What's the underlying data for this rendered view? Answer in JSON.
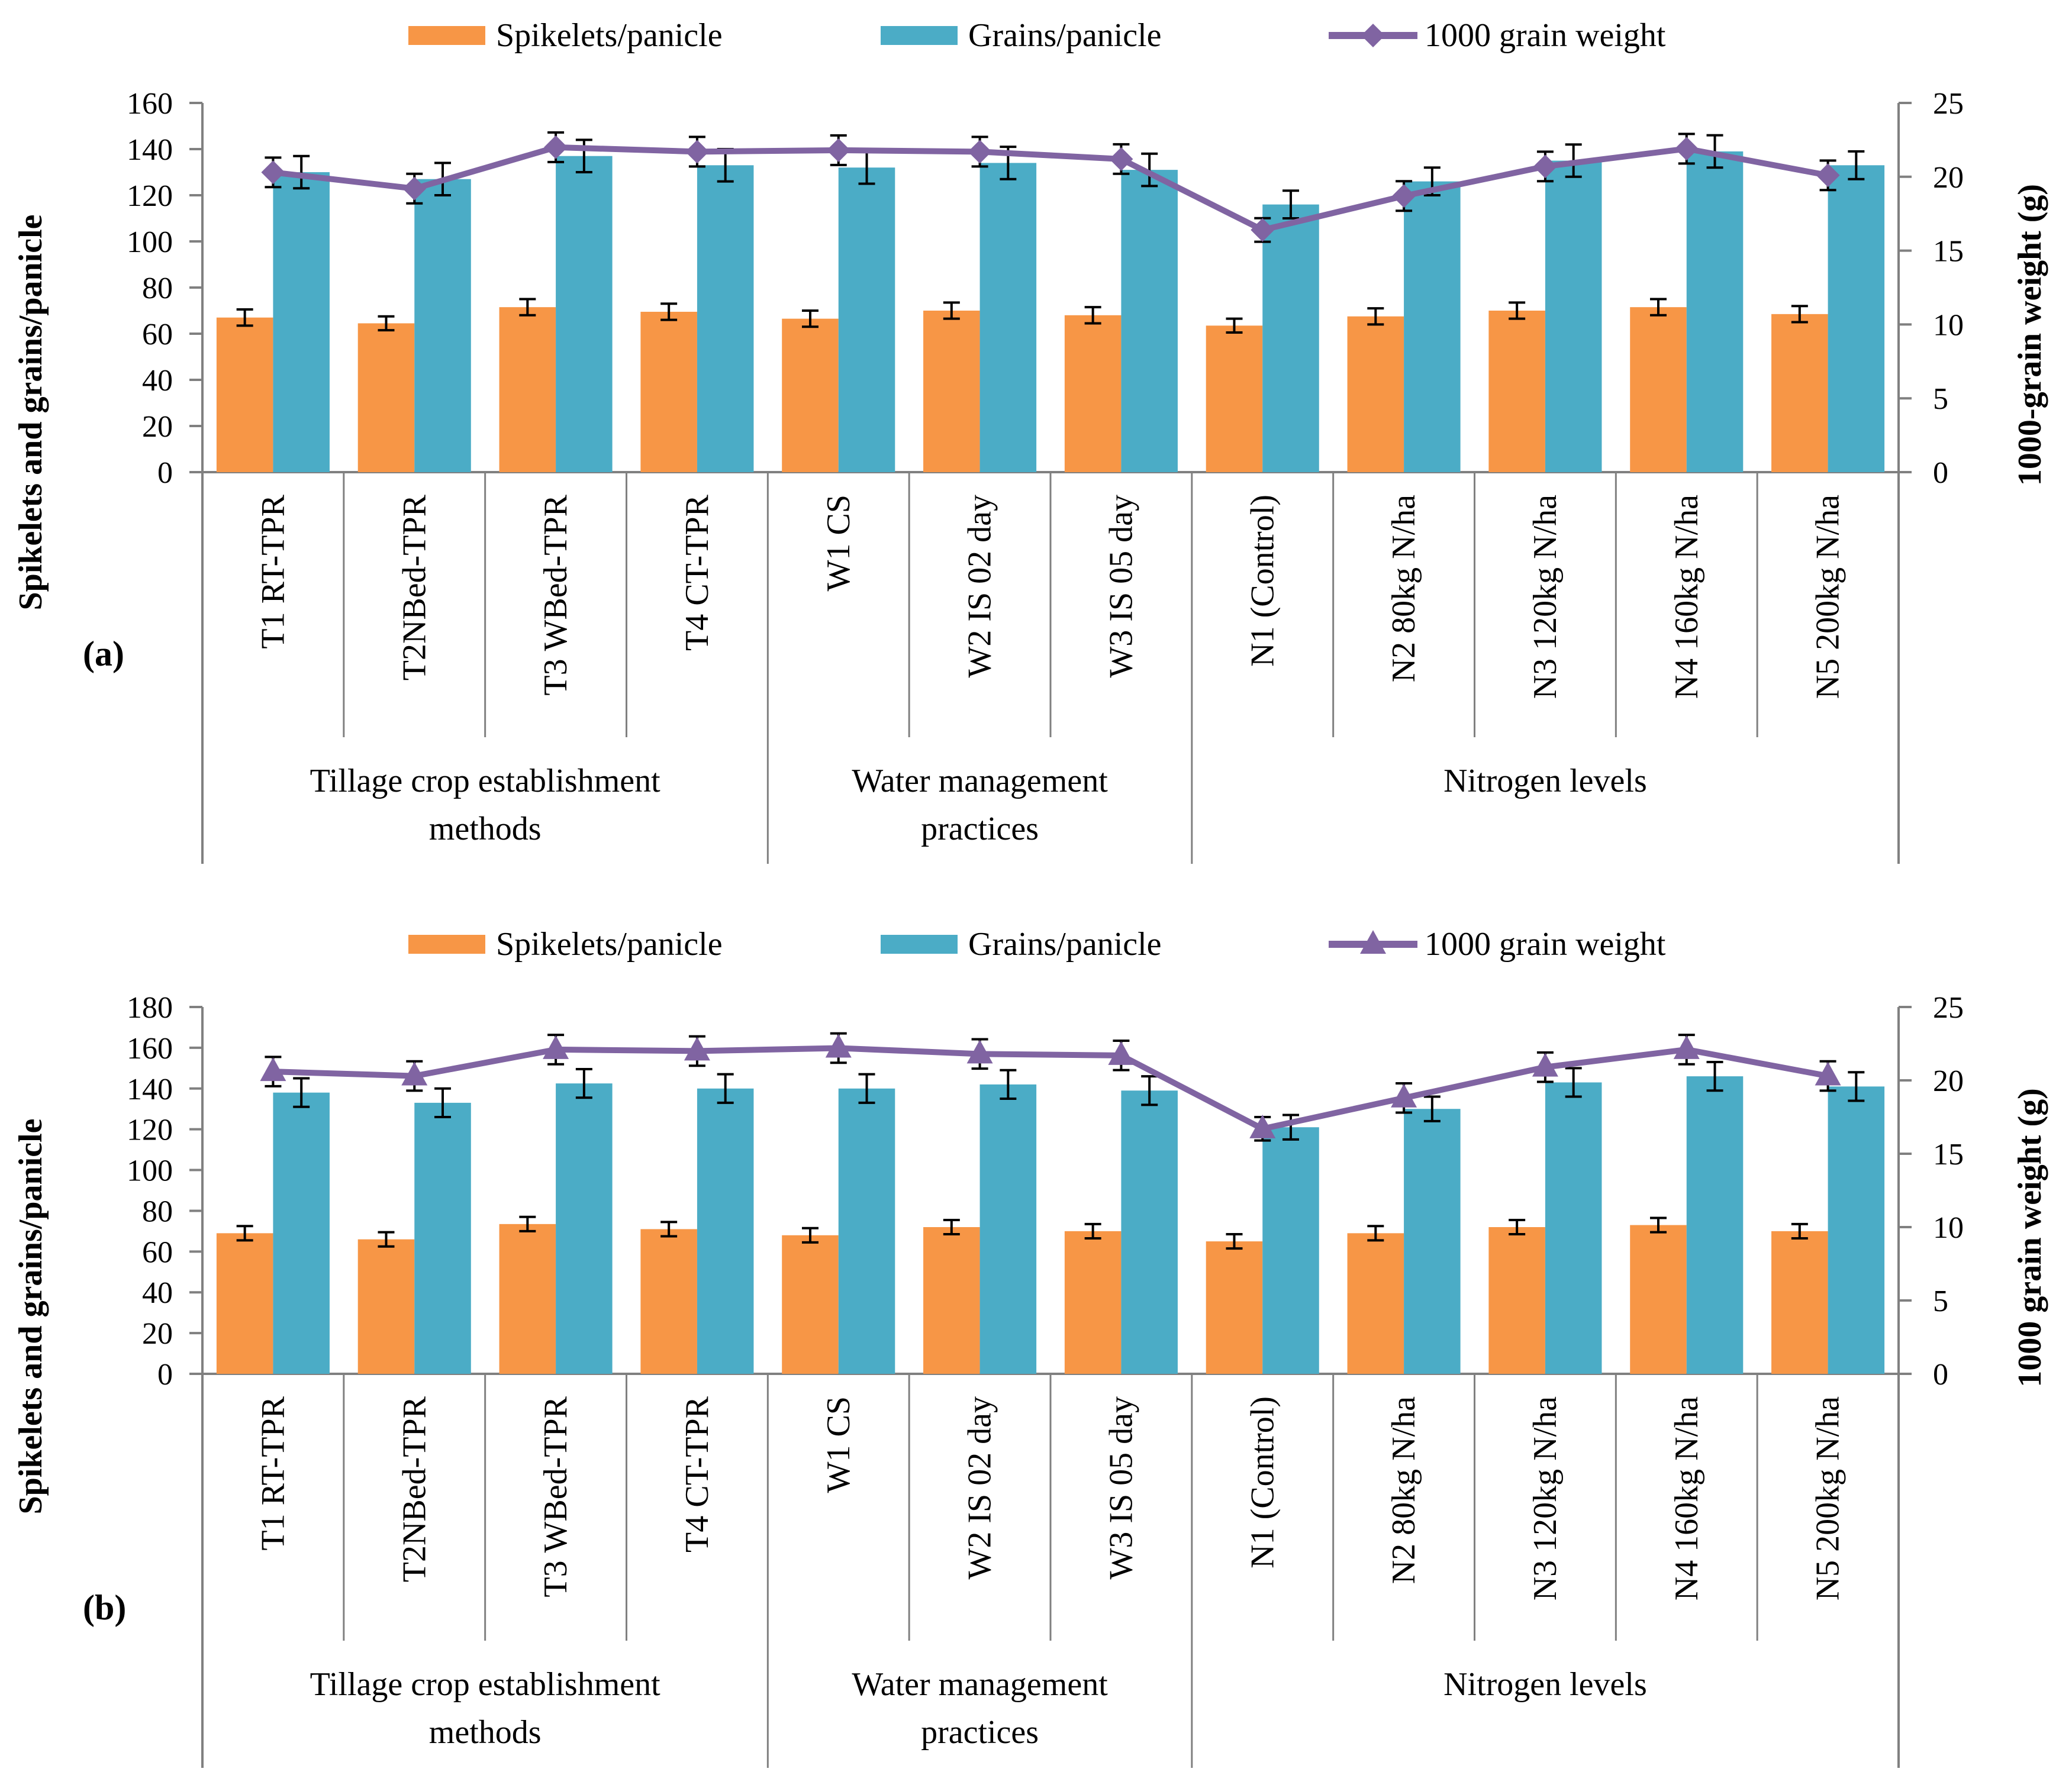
{
  "colors": {
    "spikelets": "#F79646",
    "grains": "#4BACC6",
    "weight": "#8064A2",
    "axis": "#808080",
    "error_bar": "#000000"
  },
  "chart_data": [
    {
      "type": "bar",
      "panel_label": "(a)",
      "ylabel": "Spikelets and grains/panicle",
      "y2label": "1000-grain weight (g)",
      "ylim": [
        0,
        160
      ],
      "yticks": [
        0,
        20,
        40,
        60,
        80,
        100,
        120,
        140,
        160
      ],
      "y2lim": [
        0,
        25
      ],
      "y2ticks": [
        0,
        5,
        10,
        15,
        20,
        25
      ],
      "legend": [
        "Spikelets/panicle",
        "Grains/panicle",
        "1000 grain weight"
      ],
      "weight_marker": "diamond",
      "categories": [
        "T1 RT-TPR",
        "T2NBed-TPR",
        "T3 WBed-TPR",
        "T4 CT-TPR",
        "W1 CS",
        "W2 IS 02 day",
        "W3 IS 05 day",
        "N1 (Control)",
        "N2 80kg N/ha",
        "N3 120kg N/ha",
        "N4 160kg N/ha",
        "N5 200kg N/ha"
      ],
      "groups": [
        {
          "label_lines": [
            "Tillage crop establishment",
            "methods"
          ],
          "count": 4
        },
        {
          "label_lines": [
            "Water management",
            "practices"
          ],
          "count": 3
        },
        {
          "label_lines": [
            "Nitrogen levels"
          ],
          "count": 5
        }
      ],
      "series": [
        {
          "name": "Spikelets/panicle",
          "axis": "left",
          "values": [
            67,
            64.5,
            71.5,
            69.5,
            66.5,
            70,
            68,
            63.5,
            67.5,
            70,
            71.5,
            68.5
          ],
          "errors": [
            3.5,
            3,
            3.5,
            3.5,
            3.5,
            3.5,
            3.5,
            3,
            3.5,
            3.5,
            3.5,
            3.5
          ]
        },
        {
          "name": "Grains/panicle",
          "axis": "left",
          "values": [
            130,
            127,
            137,
            133,
            132,
            134,
            131,
            116,
            126,
            135,
            139,
            133
          ],
          "errors": [
            7,
            7,
            7,
            7,
            7,
            7,
            7,
            6,
            6,
            7,
            7,
            6
          ]
        },
        {
          "name": "1000 grain weight",
          "axis": "right",
          "values": [
            20.3,
            19.2,
            22,
            21.7,
            21.8,
            21.7,
            21.2,
            16.4,
            18.7,
            20.7,
            21.9,
            20.1
          ],
          "errors": [
            1,
            1,
            1,
            1,
            1,
            1,
            1,
            0.8,
            1,
            1,
            1,
            1
          ]
        }
      ]
    },
    {
      "type": "bar",
      "panel_label": "(b)",
      "ylabel": "Spikelets and grains/panicle",
      "y2label": "1000 grain weight (g)",
      "ylim": [
        0,
        180
      ],
      "yticks": [
        0,
        20,
        40,
        60,
        80,
        100,
        120,
        140,
        160,
        180
      ],
      "y2lim": [
        0,
        25
      ],
      "y2ticks": [
        0,
        5,
        10,
        15,
        20,
        25
      ],
      "legend": [
        "Spikelets/panicle",
        "Grains/panicle",
        "1000 grain weight"
      ],
      "weight_marker": "triangle",
      "categories": [
        "T1 RT-TPR",
        "T2NBed-TPR",
        "T3 WBed-TPR",
        "T4 CT-TPR",
        "W1 CS",
        "W2 IS 02 day",
        "W3 IS 05 day",
        "N1 (Control)",
        "N2 80kg N/ha",
        "N3 120kg N/ha",
        "N4 160kg N/ha",
        "N5 200kg N/ha"
      ],
      "groups": [
        {
          "label_lines": [
            "Tillage crop establishment",
            "methods"
          ],
          "count": 4
        },
        {
          "label_lines": [
            "Water management",
            "practices"
          ],
          "count": 3
        },
        {
          "label_lines": [
            "Nitrogen levels"
          ],
          "count": 5
        }
      ],
      "series": [
        {
          "name": "Spikelets/panicle",
          "axis": "left",
          "values": [
            69,
            66,
            73.5,
            71,
            68,
            72,
            70,
            65,
            69,
            72,
            73,
            70
          ],
          "errors": [
            3.5,
            3.5,
            3.5,
            3.5,
            3.5,
            3.5,
            3.5,
            3.5,
            3.5,
            3.5,
            3.5,
            3.5
          ]
        },
        {
          "name": "Grains/panicle",
          "axis": "left",
          "values": [
            138,
            133,
            142.5,
            140,
            140,
            142,
            139,
            121,
            130,
            143,
            146,
            141
          ],
          "errors": [
            7,
            7,
            7,
            7,
            7,
            7,
            7,
            6,
            6,
            7,
            7,
            7
          ]
        },
        {
          "name": "1000 grain weight",
          "axis": "right",
          "values": [
            20.6,
            20.3,
            22.1,
            22,
            22.2,
            21.8,
            21.7,
            16.7,
            18.8,
            20.9,
            22.1,
            20.3
          ],
          "errors": [
            1,
            1,
            1,
            1,
            1,
            1,
            1,
            0.8,
            1,
            1,
            1,
            1
          ]
        }
      ]
    }
  ]
}
